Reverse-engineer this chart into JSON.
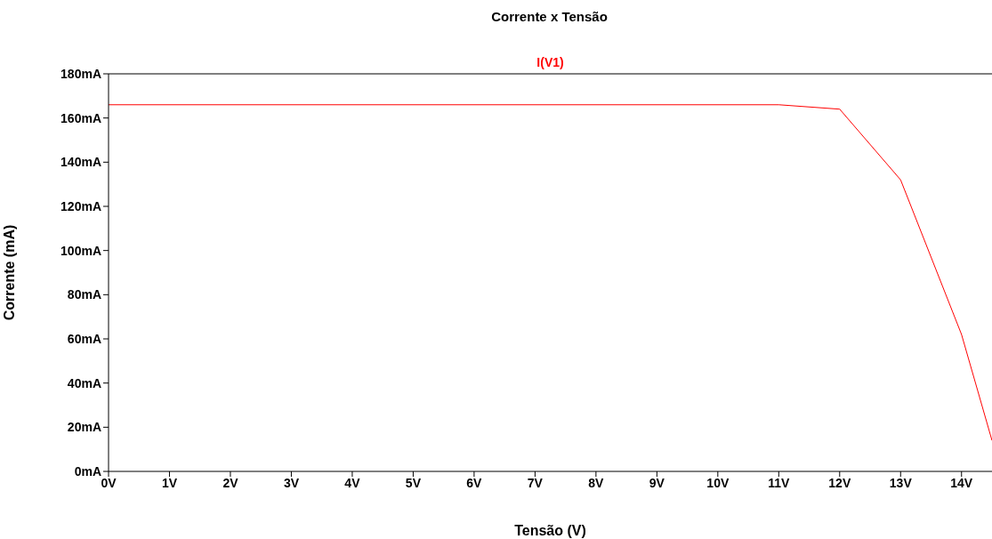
{
  "chart_data": {
    "type": "line",
    "title": "Corrente x Tensão",
    "xlabel": "Tensão (V)",
    "ylabel": "Corrente (mA)",
    "x": [
      0,
      11,
      12,
      13,
      14,
      14.5
    ],
    "series": [
      {
        "name": "I(V1)",
        "color": "#ff0000",
        "values": [
          166,
          166,
          164,
          132,
          62,
          14
        ]
      }
    ],
    "xlim": [
      0,
      14.5
    ],
    "xticks": [
      {
        "value": 0,
        "label": "0V"
      },
      {
        "value": 1,
        "label": "1V"
      },
      {
        "value": 2,
        "label": "2V"
      },
      {
        "value": 3,
        "label": "3V"
      },
      {
        "value": 4,
        "label": "4V"
      },
      {
        "value": 5,
        "label": "5V"
      },
      {
        "value": 6,
        "label": "6V"
      },
      {
        "value": 7,
        "label": "7V"
      },
      {
        "value": 8,
        "label": "8V"
      },
      {
        "value": 9,
        "label": "9V"
      },
      {
        "value": 10,
        "label": "10V"
      },
      {
        "value": 11,
        "label": "11V"
      },
      {
        "value": 12,
        "label": "12V"
      },
      {
        "value": 13,
        "label": "13V"
      },
      {
        "value": 14,
        "label": "14V"
      }
    ],
    "ylim": [
      0,
      180
    ],
    "yticks": [
      {
        "value": 0,
        "label": "0mA"
      },
      {
        "value": 20,
        "label": "20mA"
      },
      {
        "value": 40,
        "label": "40mA"
      },
      {
        "value": 60,
        "label": "60mA"
      },
      {
        "value": 80,
        "label": "80mA"
      },
      {
        "value": 100,
        "label": "100mA"
      },
      {
        "value": 120,
        "label": "120mA"
      },
      {
        "value": 140,
        "label": "140mA"
      },
      {
        "value": 160,
        "label": "160mA"
      },
      {
        "value": 180,
        "label": "180mA"
      }
    ],
    "grid": false,
    "legend": "top",
    "marker": "none",
    "line_style": "solid"
  }
}
